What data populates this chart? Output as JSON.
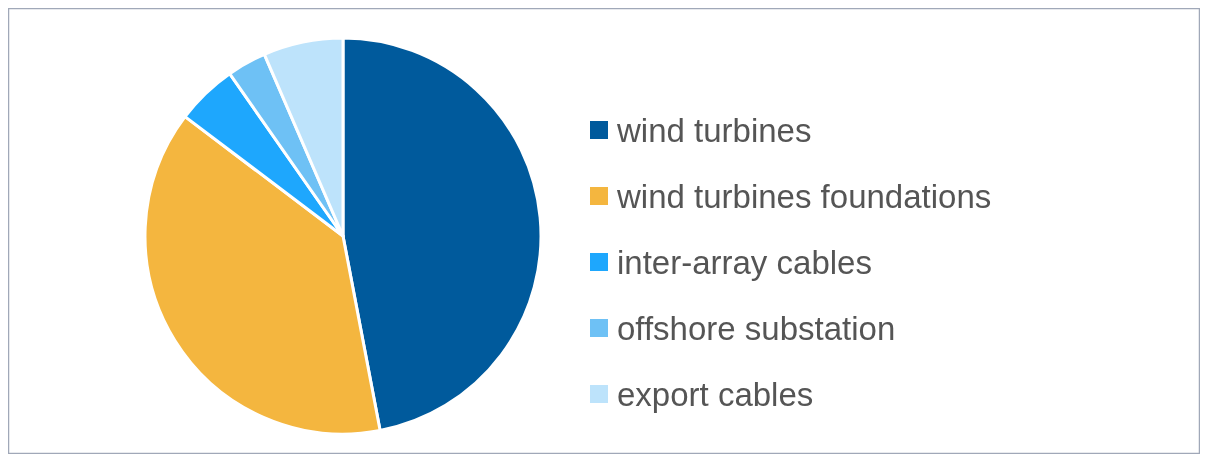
{
  "chart_data": {
    "type": "pie",
    "categories": [
      "wind turbines",
      "wind turbines foundations",
      "inter-array cables",
      "offshore substation",
      "export cables"
    ],
    "values": [
      47,
      38.3,
      5,
      3.2,
      6.5
    ],
    "colors": [
      "#005a9c",
      "#f4b63f",
      "#1ea7fd",
      "#6ec1f5",
      "#bde3fb"
    ],
    "legend": "right"
  }
}
